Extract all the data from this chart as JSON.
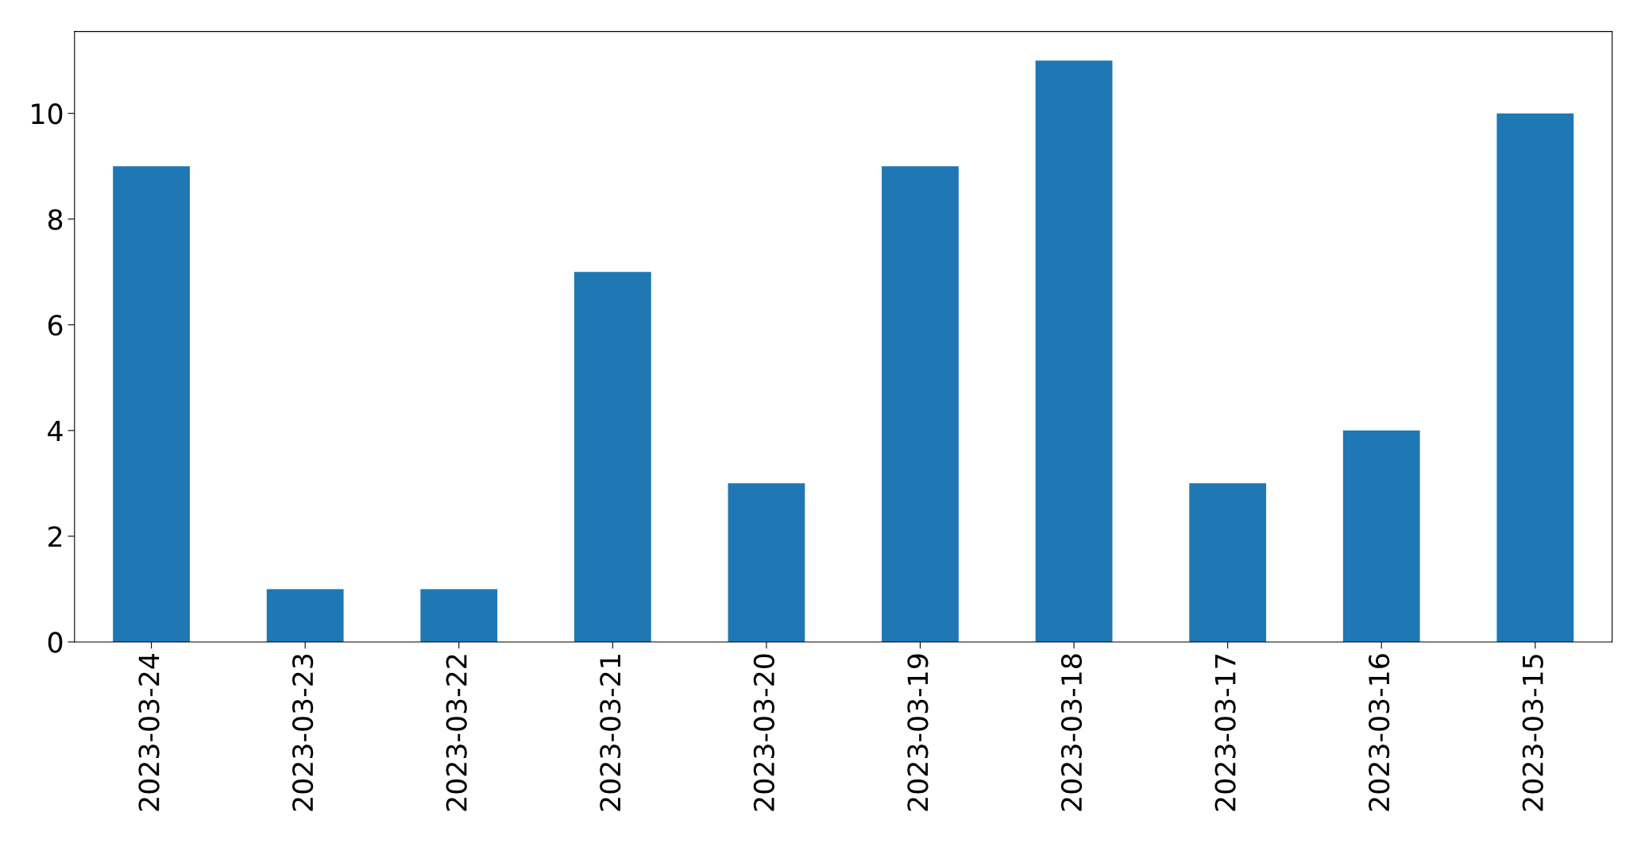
{
  "chart_data": {
    "type": "bar",
    "categories": [
      "2023-03-24",
      "2023-03-23",
      "2023-03-22",
      "2023-03-21",
      "2023-03-20",
      "2023-03-19",
      "2023-03-18",
      "2023-03-17",
      "2023-03-16",
      "2023-03-15"
    ],
    "values": [
      9,
      1,
      1,
      7,
      3,
      9,
      11,
      3,
      4,
      10
    ],
    "color": "#1f77b4",
    "ylim": [
      0,
      11.55
    ],
    "yticks": [
      0,
      2,
      4,
      6,
      8,
      10
    ],
    "grid": false
  }
}
